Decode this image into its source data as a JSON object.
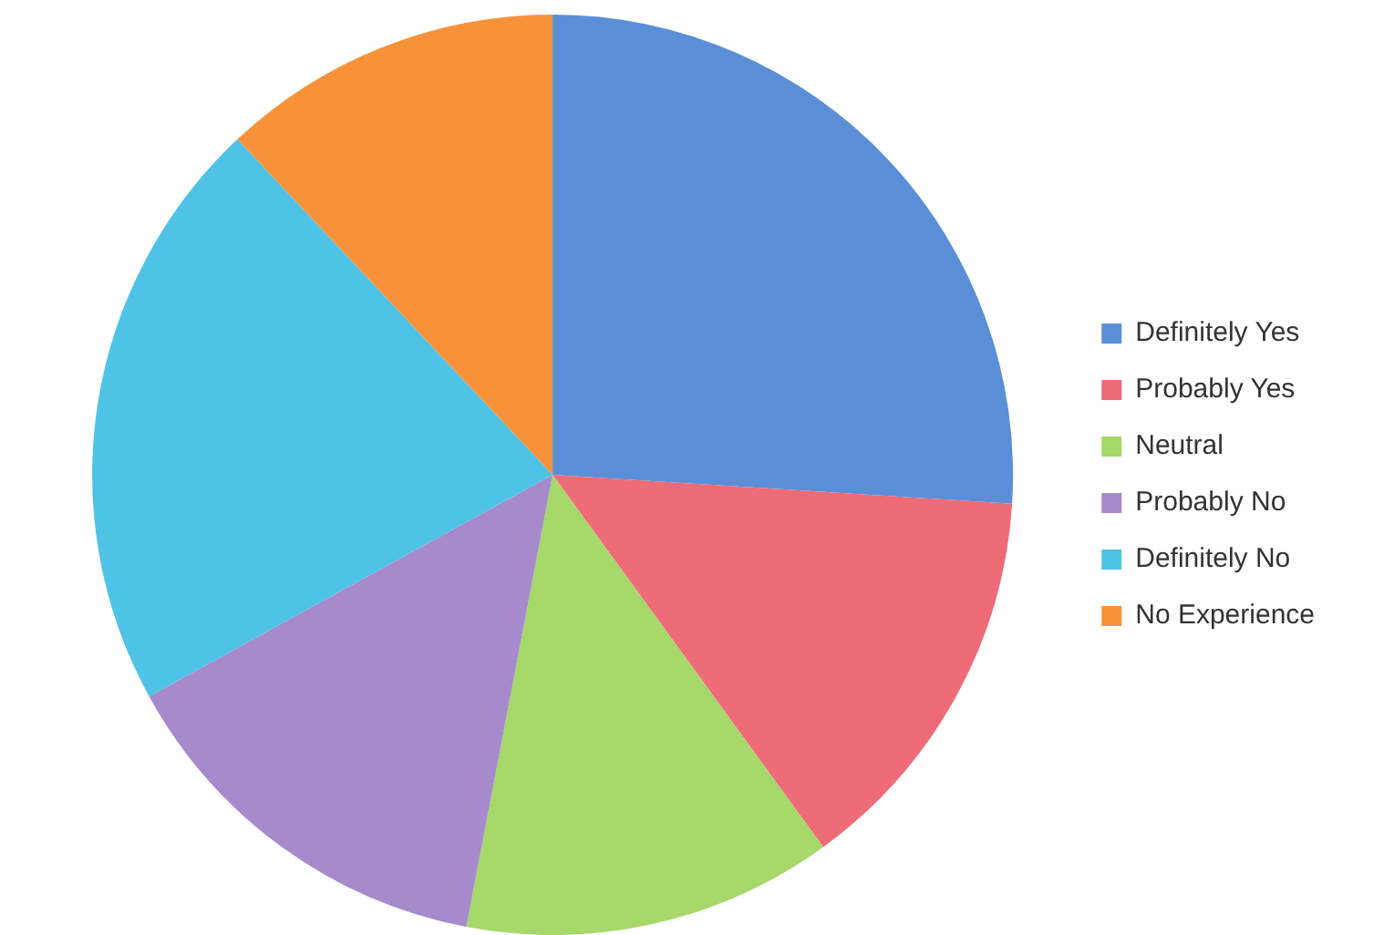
{
  "chart_data": {
    "type": "pie",
    "categories": [
      "Definitely Yes",
      "Probably Yes",
      "Neutral",
      "Probably No",
      "Definitely No",
      "No Experience"
    ],
    "values": [
      26,
      14,
      13,
      14,
      21,
      12
    ],
    "colors": [
      "#5a8fd8",
      "#ee6b78",
      "#a6d86a",
      "#a68acb",
      "#4fc3e6",
      "#f8923a"
    ],
    "legend": "right"
  }
}
